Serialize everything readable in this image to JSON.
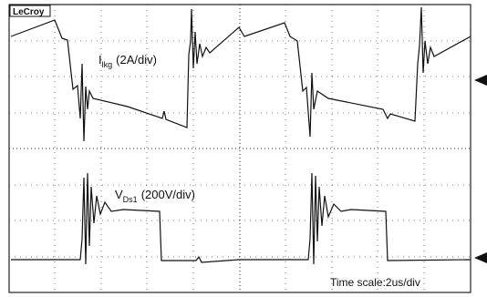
{
  "brand": "LeCroy",
  "traces": [
    {
      "symbol": "I",
      "subscript": "lkg",
      "scale": "(2A/div)"
    },
    {
      "symbol": "V",
      "subscript": "Ds1",
      "scale": "(200V/div)"
    }
  ],
  "time_scale": "Time scale:2us/div"
}
